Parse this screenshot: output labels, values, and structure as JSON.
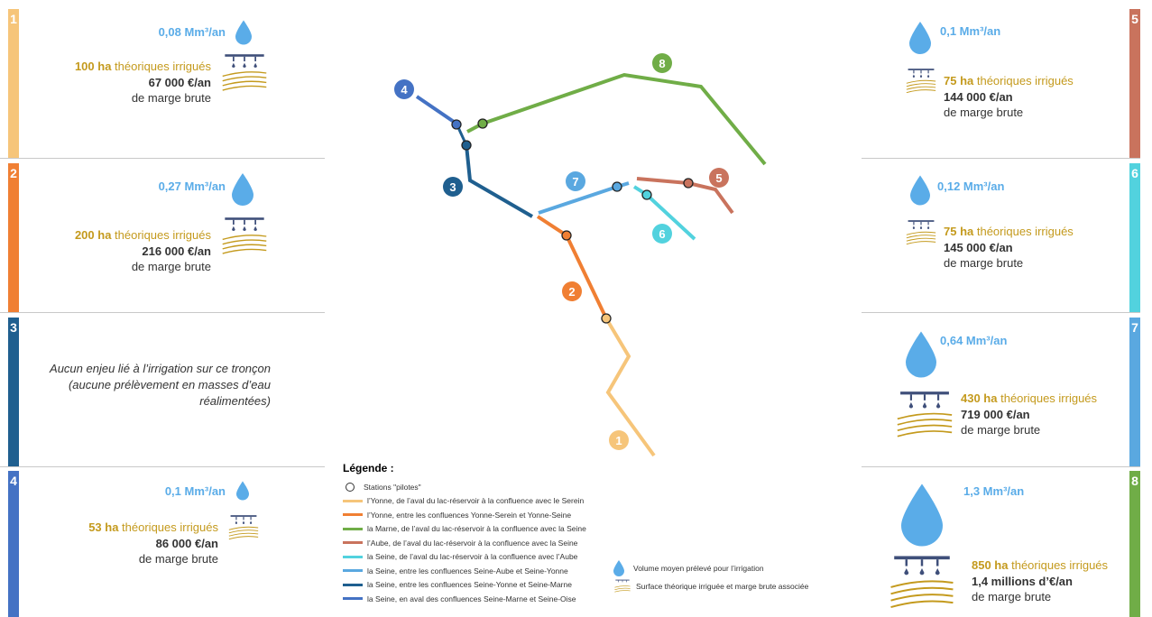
{
  "colors": {
    "c1": "#f6c57a",
    "c2": "#f07f33",
    "c3": "#1f5f8f",
    "c4": "#4472c4",
    "c5": "#c9735d",
    "c6": "#52d2de",
    "c7": "#5aa8e0",
    "c8": "#70ad47",
    "water": "#5aace8",
    "field": "#c49a1d",
    "sprinkler": "#3f4f7a"
  },
  "panels": [
    {
      "id": "1",
      "volume": "0,08 Mm³/an",
      "ha": "100 ha",
      "ha_text": " théoriques irrigués",
      "eur": "67 000 €/an",
      "mb": "de marge brute"
    },
    {
      "id": "2",
      "volume": "0,27 Mm³/an",
      "ha": "200 ha",
      "ha_text": " théoriques irrigués",
      "eur": "216 000 €/an",
      "mb": "de marge brute"
    },
    {
      "id": "3",
      "noissue": "Aucun enjeu lié à l’irrigation sur ce tronçon (aucune prélèvement en masses d’eau réalimentées)"
    },
    {
      "id": "4",
      "volume": "0,1 Mm³/an",
      "ha": "53 ha",
      "ha_text": " théoriques irrigués",
      "eur": "86 000 €/an",
      "mb": "de marge brute"
    },
    {
      "id": "5",
      "volume": "0,1 Mm³/an",
      "ha": "75 ha",
      "ha_text": " théoriques irrigués",
      "eur": "144 000 €/an",
      "mb": "de marge brute"
    },
    {
      "id": "6",
      "volume": "0,12 Mm³/an",
      "ha": "75 ha",
      "ha_text": " théoriques irrigués",
      "eur": "145 000 €/an",
      "mb": "de marge brute"
    },
    {
      "id": "7",
      "volume": "0,64 Mm³/an",
      "ha": "430 ha",
      "ha_text": " théoriques irrigués",
      "eur": "719 000 €/an",
      "mb": "de marge brute"
    },
    {
      "id": "8",
      "volume": "1,3 Mm³/an",
      "ha": "850 ha",
      "ha_text": " théoriques irrigués",
      "eur": "1,4 millions d’€/an",
      "mb": "de marge brute"
    }
  ],
  "map_labels": [
    "1",
    "2",
    "3",
    "4",
    "5",
    "6",
    "7",
    "8"
  ],
  "legend": {
    "title": "Légende :",
    "stations": "Stations \"pilotes\"",
    "items": [
      "l’Yonne, de l’aval du lac-réservoir à la confluence avec le Serein",
      "l’Yonne, entre les confluences Yonne-Serein et Yonne-Seine",
      "la Marne, de l’aval du lac-réservoir à la confluence avec la Seine",
      "l’Aube, de l’aval du lac-réservoir à la confluence avec la Seine",
      "la Seine, de l’aval du lac-réservoir à la confluence avec l’Aube",
      "la Seine, entre les confluences Seine-Aube et Seine-Yonne",
      "la Seine, entre les confluences Seine-Yonne et Seine-Marne",
      "la Seine, en aval des confluences Seine-Marne et Seine-Oise"
    ],
    "volume_label": "Volume moyen prélevé pour l’irrigation",
    "surface_label": "Surface théorique irriguée et marge brute associée"
  }
}
